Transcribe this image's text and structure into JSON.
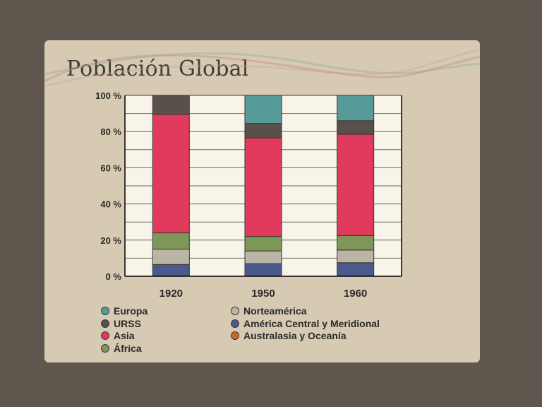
{
  "title": "Población Global",
  "chart_data": {
    "type": "bar",
    "stacked": true,
    "categories": [
      "1920",
      "1950",
      "1960"
    ],
    "ylim": [
      0,
      100
    ],
    "yticks": [
      "0 %",
      "20 %",
      "40 %",
      "60 %",
      "80 %",
      "100 %"
    ],
    "grid": true,
    "legend_position": "bottom",
    "series": [
      {
        "name": "Australasia y Oceanía",
        "color": "#d4602c",
        "values": [
          0.5,
          0.5,
          0.5
        ]
      },
      {
        "name": "América Central y Meridional",
        "color": "#4a5a8c",
        "values": [
          6,
          6.5,
          7
        ]
      },
      {
        "name": "Norteamérica",
        "color": "#bab5a5",
        "values": [
          8.5,
          7,
          7
        ]
      },
      {
        "name": "África",
        "color": "#7e9658",
        "values": [
          9,
          8,
          8
        ]
      },
      {
        "name": "Asia",
        "color": "#e03a5d",
        "values": [
          65.5,
          54.5,
          56
        ]
      },
      {
        "name": "URSS",
        "color": "#58504a",
        "values": [
          10.5,
          8,
          7.5
        ]
      },
      {
        "name": "Europa",
        "color": "#569b9a",
        "values": [
          0,
          15.5,
          14
        ]
      }
    ],
    "legend_order": [
      "Europa",
      "URSS",
      "Asia",
      "África",
      "Norteamérica",
      "América Central y Meridional",
      "Australasia y Oceanía"
    ]
  }
}
